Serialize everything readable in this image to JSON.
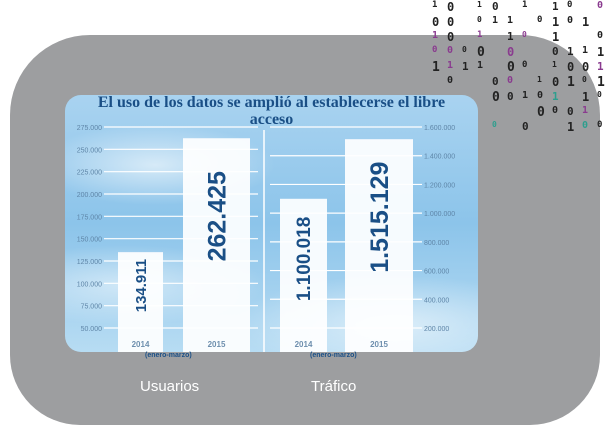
{
  "chart_data": [
    {
      "type": "bar",
      "title": "El uso de los datos se amplió al establecerse el libre acceso",
      "xlabel": "Usuarios",
      "note": "(enero-marzo)",
      "categories": [
        "2014",
        "2015"
      ],
      "values": [
        134911,
        262425
      ],
      "value_labels": [
        "134.911",
        "262.425"
      ],
      "ylim": [
        50000,
        275000
      ],
      "yticks": [
        "50.000",
        "75.000",
        "100.000",
        "125.000",
        "150.000",
        "175.000",
        "200.000",
        "225.000",
        "250.000",
        "275.000"
      ],
      "axis": "left"
    },
    {
      "type": "bar",
      "xlabel": "Tráfico",
      "note": "(enero-marzo)",
      "categories": [
        "2014",
        "2015"
      ],
      "values": [
        1100018,
        1515129
      ],
      "value_labels": [
        "1.100.018",
        "1.515.129"
      ],
      "ylim": [
        200000,
        1600000
      ],
      "yticks": [
        "200.000",
        "400.000",
        "600.000",
        "800.000",
        "1.000.000",
        "1.200.000",
        "1.400.000",
        "1.600.000"
      ],
      "axis": "right"
    }
  ],
  "title": "El uso de los datos se amplió al establecerse el libre acceso",
  "colors": {
    "frame": "#9d9ea0",
    "text": "#1a4f86",
    "bar": "#ffffff",
    "digit_accent": "#8a3b8f",
    "digit_teal": "#2e9e8e"
  }
}
